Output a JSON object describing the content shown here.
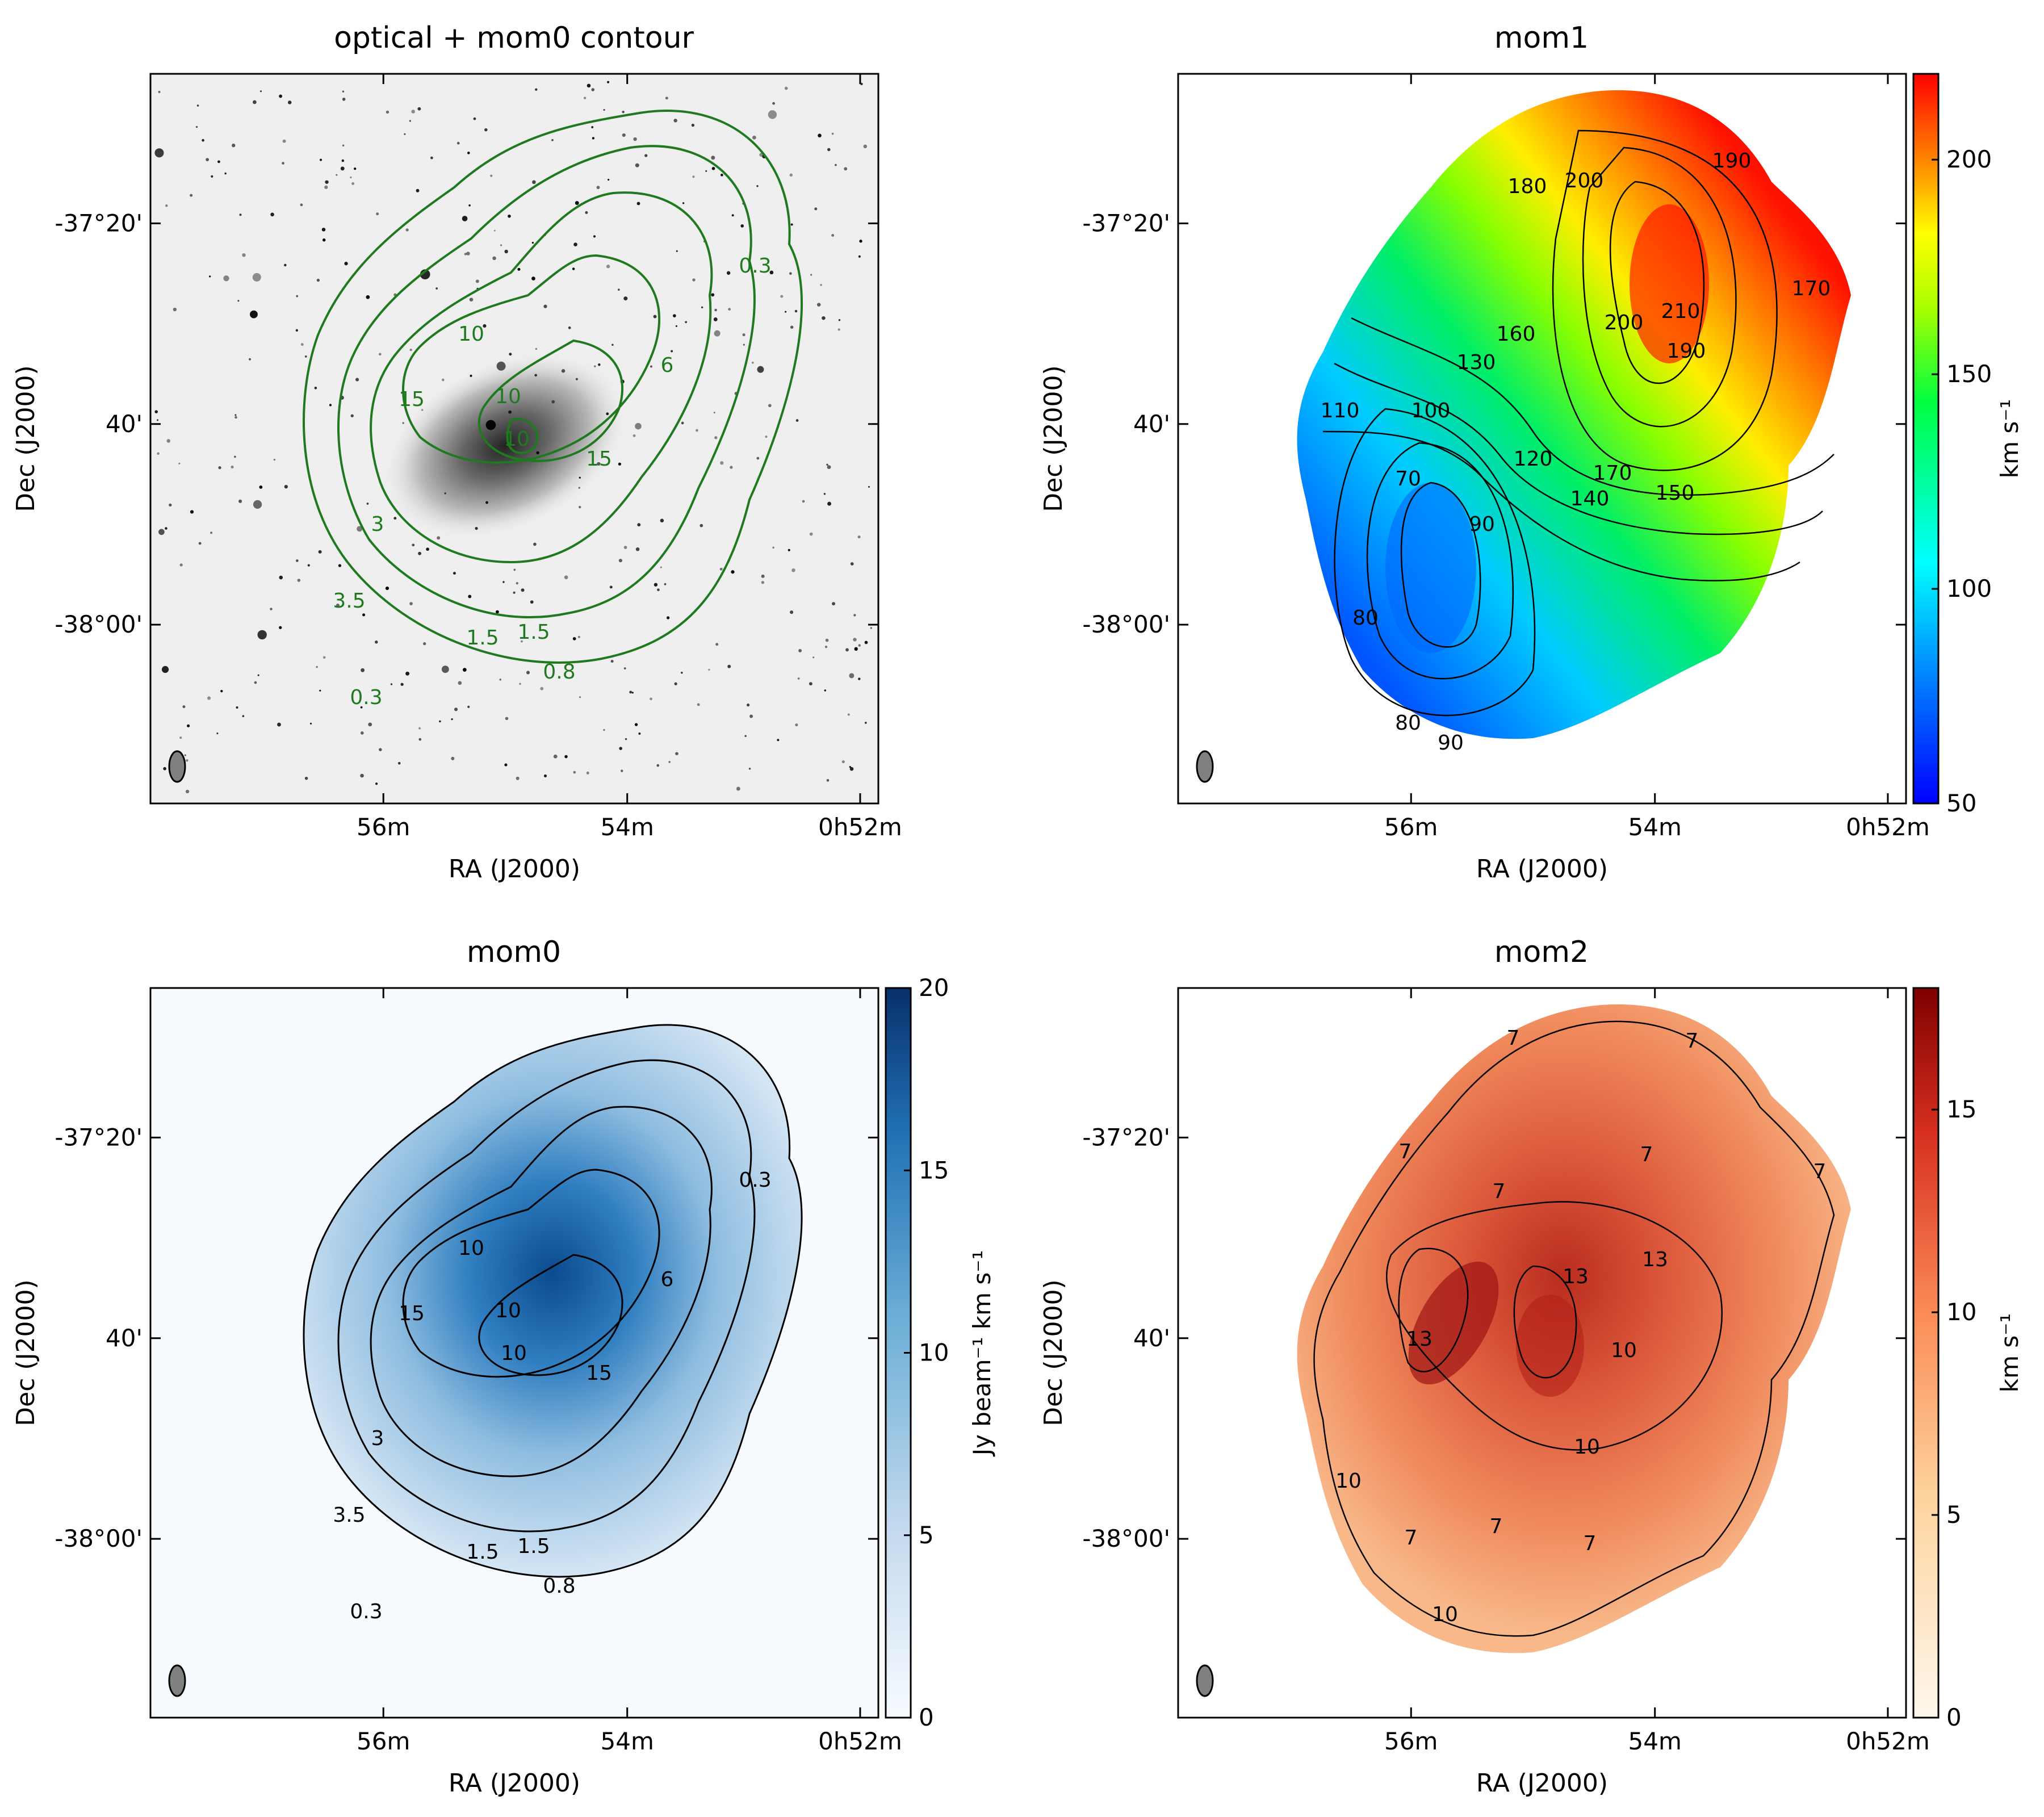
{
  "figure": {
    "colors": {
      "axis": "#000000",
      "contour_optical": "#1f7a1f",
      "contour_other": "#000000",
      "optical_bg": "#efefef"
    }
  },
  "chart_data": [
    {
      "id": "optical",
      "type": "heatmap",
      "title": "optical + mom0 contour",
      "xlabel": "RA (J2000)",
      "ylabel": "Dec (J2000)",
      "xticks": [
        "56m",
        "54m",
        "0h52m"
      ],
      "yticks": [
        "-37°20'",
        "40'",
        "-38°00'"
      ],
      "image": "optical greyscale (DSS)",
      "contour_color": "green",
      "contour_labels": [
        "0.3",
        "0.8",
        "1.5",
        "1.5",
        "3.5",
        "3",
        "6",
        "10",
        "10",
        "15",
        "15",
        "10",
        "0.3"
      ],
      "colorbar": null
    },
    {
      "id": "mom1",
      "type": "heatmap",
      "title": "mom1",
      "xlabel": "RA (J2000)",
      "ylabel": "Dec (J2000)",
      "xticks": [
        "56m",
        "54m",
        "0h52m"
      ],
      "yticks": [
        "-37°20'",
        "40'",
        "-38°00'"
      ],
      "colormap": "jet",
      "contour_labels": [
        "180",
        "200",
        "190",
        "170",
        "160",
        "130",
        "110",
        "100",
        "120",
        "140",
        "170",
        "150",
        "210",
        "200",
        "190",
        "70",
        "90",
        "80",
        "80",
        "90"
      ],
      "colorbar": {
        "label": "km s⁻¹",
        "ticks": [
          "50",
          "100",
          "150",
          "200"
        ],
        "min": 50,
        "max": 220
      }
    },
    {
      "id": "mom0",
      "type": "heatmap",
      "title": "mom0",
      "xlabel": "RA (J2000)",
      "ylabel": "Dec (J2000)",
      "xticks": [
        "56m",
        "54m",
        "0h52m"
      ],
      "yticks": [
        "-37°20'",
        "40'",
        "-38°00'"
      ],
      "colormap": "Blues (sqrt stretch)",
      "contour_labels": [
        "0.3",
        "0.8",
        "1.5",
        "1.5",
        "3.5",
        "3",
        "6",
        "10",
        "10",
        "10",
        "15",
        "15",
        "0.3"
      ],
      "colorbar": {
        "label": "Jy beam⁻¹ km s⁻¹",
        "ticks": [
          "0",
          "5",
          "10",
          "15",
          "20"
        ],
        "min": 0,
        "max": 20
      }
    },
    {
      "id": "mom2",
      "type": "heatmap",
      "title": "mom2",
      "xlabel": "RA (J2000)",
      "ylabel": "Dec (J2000)",
      "xticks": [
        "56m",
        "54m",
        "0h52m"
      ],
      "yticks": [
        "-37°20'",
        "40'",
        "-38°00'"
      ],
      "colormap": "OrRd",
      "contour_labels": [
        "7",
        "7",
        "7",
        "7",
        "7",
        "7",
        "13",
        "13",
        "13",
        "10",
        "10",
        "10",
        "10",
        "7",
        "7",
        "7"
      ],
      "colorbar": {
        "label": "km s⁻¹",
        "ticks": [
          "0",
          "5",
          "10",
          "15"
        ],
        "min": 0,
        "max": 18
      }
    }
  ]
}
